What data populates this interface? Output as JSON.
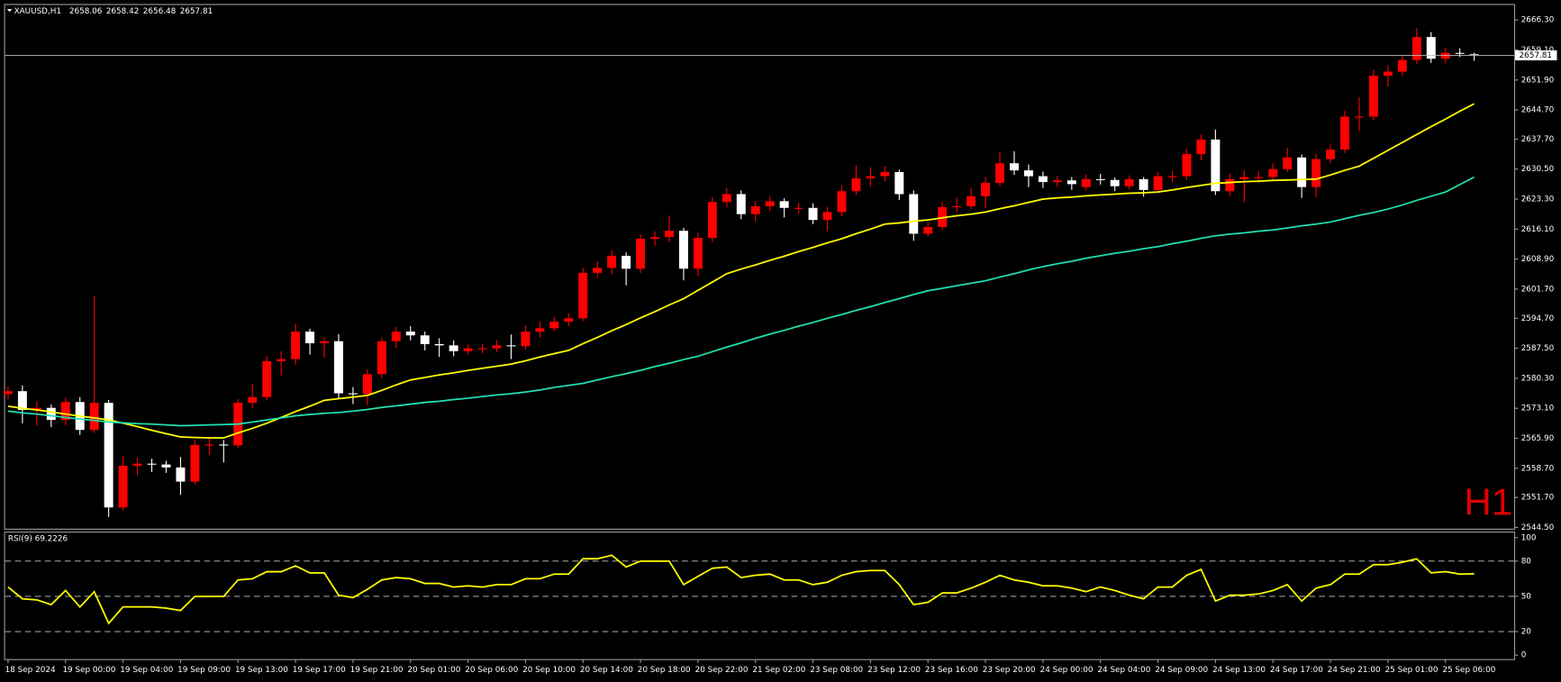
{
  "chart_data": [
    {
      "type": "candlestick",
      "title": "XAUUSD,H1",
      "status": [
        2658.06,
        2658.42,
        2656.48,
        2657.81
      ],
      "watermark": "H1",
      "up_color": "#ff0000",
      "down_color": "#ffffff",
      "current_price": 2657.81,
      "categories": [
        "18 Sep 2024",
        null,
        null,
        null,
        "19 Sep 00:00",
        null,
        null,
        null,
        "19 Sep 04:00",
        null,
        null,
        null,
        "19 Sep 09:00",
        null,
        null,
        null,
        "19 Sep 13:00",
        null,
        null,
        null,
        "19 Sep 17:00",
        null,
        null,
        null,
        "19 Sep 21:00",
        null,
        null,
        null,
        "20 Sep 01:00",
        null,
        null,
        null,
        "20 Sep 06:00",
        null,
        null,
        null,
        "20 Sep 10:00",
        null,
        null,
        null,
        "20 Sep 14:00",
        null,
        null,
        null,
        "20 Sep 18:00",
        null,
        null,
        null,
        "20 Sep 22:00",
        null,
        null,
        null,
        "21 Sep 02:00",
        null,
        null,
        null,
        "23 Sep 08:00",
        null,
        null,
        null,
        "23 Sep 12:00",
        null,
        null,
        null,
        "23 Sep 16:00",
        null,
        null,
        null,
        "23 Sep 20:00",
        null,
        null,
        null,
        "24 Sep 00:00",
        null,
        null,
        null,
        "24 Sep 04:00",
        null,
        null,
        null,
        "24 Sep 09:00",
        null,
        null,
        null,
        "24 Sep 13:00",
        null,
        null,
        null,
        "24 Sep 17:00",
        null,
        null,
        null,
        "24 Sep 21:00",
        null,
        null,
        null,
        "25 Sep 01:00",
        null,
        null,
        null,
        "25 Sep 06:00",
        null,
        null
      ],
      "open": [
        2576.5,
        2577.2,
        2572.7,
        2573.2,
        2570.3,
        2574.6,
        2567.9,
        2574.4,
        2549.3,
        2559.3,
        2559.8,
        2559.6,
        2558.9,
        2555.5,
        2564.3,
        2564.4,
        2564.2,
        2574.4,
        2575.8,
        2584.4,
        2584.9,
        2591.5,
        2588.7,
        2589.2,
        2576.7,
        2576.5,
        2581.3,
        2589.2,
        2591.5,
        2590.6,
        2588.5,
        2588.2,
        2586.8,
        2587.5,
        2587.5,
        2588.2,
        2588.0,
        2591.5,
        2592.3,
        2593.9,
        2594.7,
        2605.6,
        2606.8,
        2609.7,
        2606.6,
        2613.8,
        2614.2,
        2615.7,
        2606.6,
        2614.0,
        2622.6,
        2624.5,
        2619.7,
        2621.6,
        2622.8,
        2621.2,
        2621.2,
        2618.3,
        2620.2,
        2625.2,
        2628.3,
        2628.8,
        2629.8,
        2624.5,
        2615.0,
        2616.6,
        2621.4,
        2621.6,
        2624.0,
        2627.2,
        2631.9,
        2630.2,
        2628.8,
        2627.4,
        2627.8,
        2626.2,
        2628.1,
        2627.9,
        2626.4,
        2628.1,
        2625.5,
        2628.8,
        2628.8,
        2634.1,
        2637.6,
        2625.2,
        2628.1,
        2628.6,
        2628.6,
        2630.5,
        2633.3,
        2626.2,
        2632.9,
        2635.2,
        2643.1,
        2643.1,
        2652.9,
        2653.9,
        2656.7,
        2662.2,
        2657.0,
        2658.4,
        2658.06
      ],
      "high": [
        2578.4,
        2578.6,
        2574.8,
        2574.0,
        2575.6,
        2575.8,
        2600.1,
        2575.1,
        2561.5,
        2561.2,
        2561.0,
        2560.5,
        2561.4,
        2565.6,
        2566.2,
        2565.5,
        2575.3,
        2578.9,
        2585.6,
        2586.8,
        2593.4,
        2592.2,
        2590.1,
        2590.9,
        2578.2,
        2582.5,
        2590.1,
        2592.6,
        2592.8,
        2591.5,
        2589.9,
        2589.4,
        2588.4,
        2588.6,
        2589.4,
        2590.8,
        2593.0,
        2594.0,
        2595.0,
        2595.9,
        2606.8,
        2608.4,
        2611.1,
        2610.5,
        2614.9,
        2615.6,
        2619.4,
        2616.4,
        2615.2,
        2623.8,
        2626.0,
        2625.4,
        2622.8,
        2623.9,
        2623.5,
        2622.4,
        2622.3,
        2621.5,
        2626.6,
        2631.4,
        2631.0,
        2631.2,
        2630.4,
        2625.4,
        2617.8,
        2622.6,
        2623.8,
        2626.0,
        2628.6,
        2634.6,
        2634.8,
        2631.6,
        2629.9,
        2628.9,
        2628.6,
        2629.2,
        2629.4,
        2628.5,
        2629.0,
        2628.6,
        2629.8,
        2630.0,
        2635.4,
        2638.8,
        2640.0,
        2629.4,
        2630.3,
        2630.0,
        2631.9,
        2635.6,
        2634.0,
        2634.2,
        2636.4,
        2644.5,
        2647.8,
        2654.3,
        2655.4,
        2658.0,
        2664.3,
        2663.4,
        2659.6,
        2659.5,
        2658.42
      ],
      "low": [
        2575.2,
        2569.5,
        2568.9,
        2568.6,
        2569.0,
        2566.7,
        2567.2,
        2547.0,
        2548.6,
        2557.0,
        2557.8,
        2557.6,
        2552.3,
        2554.8,
        2561.9,
        2560.1,
        2563.5,
        2573.2,
        2575.1,
        2581.0,
        2583.6,
        2586.0,
        2585.2,
        2575.3,
        2574.1,
        2573.9,
        2580.4,
        2587.6,
        2589.4,
        2587.0,
        2585.4,
        2585.6,
        2586.0,
        2586.3,
        2586.6,
        2584.9,
        2587.1,
        2590.1,
        2591.6,
        2592.8,
        2594.0,
        2604.4,
        2605.4,
        2602.6,
        2605.6,
        2612.1,
        2613.0,
        2603.8,
        2604.9,
        2613.0,
        2621.4,
        2618.5,
        2617.8,
        2620.4,
        2618.9,
        2619.8,
        2617.3,
        2615.6,
        2619.2,
        2624.3,
        2626.4,
        2627.6,
        2623.1,
        2613.3,
        2614.3,
        2615.9,
        2620.2,
        2620.9,
        2621.1,
        2626.4,
        2629.1,
        2626.2,
        2626.0,
        2626.2,
        2625.5,
        2625.4,
        2626.8,
        2625.2,
        2625.7,
        2623.9,
        2624.8,
        2627.4,
        2627.9,
        2632.6,
        2624.3,
        2624.0,
        2622.6,
        2627.2,
        2627.9,
        2629.8,
        2623.6,
        2623.8,
        2631.9,
        2634.4,
        2639.6,
        2642.2,
        2650.3,
        2653.0,
        2655.8,
        2656.0,
        2655.9,
        2657.4,
        2656.48
      ],
      "close": [
        2577.2,
        2572.7,
        2573.2,
        2570.3,
        2574.6,
        2567.9,
        2574.4,
        2549.3,
        2559.3,
        2559.8,
        2559.6,
        2558.9,
        2555.5,
        2564.3,
        2564.4,
        2564.2,
        2574.4,
        2575.8,
        2584.4,
        2584.9,
        2591.5,
        2588.7,
        2589.2,
        2576.7,
        2576.5,
        2581.3,
        2589.2,
        2591.5,
        2590.6,
        2588.5,
        2588.2,
        2586.8,
        2587.5,
        2587.5,
        2588.2,
        2588.0,
        2591.5,
        2592.3,
        2593.9,
        2594.7,
        2605.6,
        2606.8,
        2609.7,
        2606.6,
        2613.8,
        2614.2,
        2615.7,
        2606.6,
        2614.0,
        2622.6,
        2624.5,
        2619.7,
        2621.6,
        2622.8,
        2621.2,
        2621.2,
        2618.3,
        2620.2,
        2625.2,
        2628.3,
        2628.8,
        2629.8,
        2624.5,
        2615.0,
        2616.6,
        2621.4,
        2621.6,
        2624.0,
        2627.2,
        2631.9,
        2630.2,
        2628.8,
        2627.4,
        2627.8,
        2626.9,
        2628.1,
        2627.9,
        2626.4,
        2628.1,
        2625.5,
        2628.8,
        2628.8,
        2634.1,
        2637.6,
        2625.2,
        2628.1,
        2628.6,
        2628.6,
        2630.5,
        2633.3,
        2626.2,
        2632.9,
        2635.2,
        2643.1,
        2643.1,
        2652.9,
        2653.9,
        2656.7,
        2662.2,
        2657.0,
        2658.4,
        2658.3,
        2657.81
      ],
      "series": [
        {
          "color": "#ffff00",
          "values": [
            2573.6,
            2573.1,
            2572.7,
            2572.2,
            2571.7,
            2571.2,
            2570.8,
            2570.3,
            2569.5,
            2568.7,
            2567.8,
            2567.0,
            2566.2,
            2566.1,
            2566.0,
            2566.0,
            2567.2,
            2568.3,
            2569.5,
            2570.9,
            2572.3,
            2573.6,
            2575.0,
            2575.4,
            2575.8,
            2576.2,
            2577.4,
            2578.7,
            2579.9,
            2580.5,
            2581.1,
            2581.6,
            2582.2,
            2582.7,
            2583.2,
            2583.7,
            2584.5,
            2585.4,
            2586.2,
            2587.0,
            2588.6,
            2590.1,
            2591.7,
            2593.2,
            2594.8,
            2596.3,
            2597.9,
            2599.4,
            2601.4,
            2603.4,
            2605.4,
            2606.5,
            2607.5,
            2608.6,
            2609.6,
            2610.7,
            2611.7,
            2612.8,
            2613.8,
            2615.0,
            2616.1,
            2617.3,
            2617.6,
            2618.0,
            2618.3,
            2618.8,
            2619.3,
            2619.7,
            2620.2,
            2621.0,
            2621.7,
            2622.5,
            2623.3,
            2623.6,
            2623.8,
            2624.1,
            2624.3,
            2624.5,
            2624.7,
            2624.8,
            2625.0,
            2625.5,
            2626.1,
            2626.6,
            2627.1,
            2627.3,
            2627.5,
            2627.6,
            2627.8,
            2627.9,
            2628.0,
            2628.1,
            2629.1,
            2630.2,
            2631.2,
            2633.1,
            2635.0,
            2636.9,
            2638.8,
            2640.7,
            2642.5,
            2644.4,
            2646.2
          ]
        },
        {
          "color": "#20e0b0",
          "values": [
            2572.4,
            2572.0,
            2571.7,
            2571.3,
            2570.9,
            2570.5,
            2570.2,
            2569.8,
            2569.6,
            2569.4,
            2569.3,
            2569.1,
            2568.9,
            2569.0,
            2569.1,
            2569.2,
            2569.3,
            2569.8,
            2570.3,
            2570.8,
            2571.3,
            2571.6,
            2571.9,
            2572.1,
            2572.4,
            2572.8,
            2573.3,
            2573.7,
            2574.1,
            2574.5,
            2574.8,
            2575.2,
            2575.5,
            2575.9,
            2576.3,
            2576.6,
            2577.0,
            2577.5,
            2578.1,
            2578.6,
            2579.1,
            2579.9,
            2580.7,
            2581.4,
            2582.2,
            2583.1,
            2583.9,
            2584.8,
            2585.6,
            2586.7,
            2587.8,
            2588.8,
            2589.9,
            2590.9,
            2591.8,
            2592.8,
            2593.7,
            2594.7,
            2595.6,
            2596.6,
            2597.5,
            2598.5,
            2599.4,
            2600.4,
            2601.3,
            2601.9,
            2602.5,
            2603.1,
            2603.7,
            2604.6,
            2605.4,
            2606.3,
            2607.1,
            2607.8,
            2608.4,
            2609.1,
            2609.7,
            2610.3,
            2610.8,
            2611.4,
            2611.9,
            2612.6,
            2613.2,
            2613.9,
            2614.5,
            2614.9,
            2615.2,
            2615.6,
            2615.9,
            2616.4,
            2616.9,
            2617.3,
            2617.8,
            2618.6,
            2619.4,
            2620.1,
            2620.9,
            2621.9,
            2623.0,
            2624.0,
            2625.0,
            2626.8,
            2628.6
          ]
        }
      ],
      "ylim": [
        2544.2,
        2669.9
      ],
      "yticks": [
        {
          "value": 2666.3,
          "label": "2666.30"
        },
        {
          "value": 2659.1,
          "label": "2659.10"
        },
        {
          "value": 2651.9,
          "label": "2651.90"
        },
        {
          "value": 2644.7,
          "label": "2644.70"
        },
        {
          "value": 2637.7,
          "label": "2637.70"
        },
        {
          "value": 2630.5,
          "label": "2630.50"
        },
        {
          "value": 2623.3,
          "label": "2623.30"
        },
        {
          "value": 2616.1,
          "label": "2616.10"
        },
        {
          "value": 2608.9,
          "label": "2608.90"
        },
        {
          "value": 2601.7,
          "label": "2601.70"
        },
        {
          "value": 2594.7,
          "label": "2594.70"
        },
        {
          "value": 2587.5,
          "label": "2587.50"
        },
        {
          "value": 2580.3,
          "label": "2580.30"
        },
        {
          "value": 2573.1,
          "label": "2573.10"
        },
        {
          "value": 2565.9,
          "label": "2565.90"
        },
        {
          "value": 2558.7,
          "label": "2558.70"
        },
        {
          "value": 2551.7,
          "label": "2551.70"
        },
        {
          "value": 2544.5,
          "label": "2544.50"
        }
      ]
    },
    {
      "type": "line",
      "title": "RSI(9) 69.2226",
      "color": "#ffff00",
      "values": [
        58,
        48,
        47,
        43,
        55,
        41,
        54,
        27,
        41,
        41,
        41,
        40,
        38,
        50,
        50,
        50,
        64,
        65,
        71,
        71,
        76,
        70,
        70,
        51,
        49,
        56,
        64,
        66,
        65,
        61,
        61,
        58,
        59,
        58,
        60,
        60,
        65,
        65,
        69,
        69,
        82,
        82,
        85,
        75,
        80,
        80,
        80,
        60,
        67,
        74,
        75,
        66,
        68,
        69,
        64,
        64,
        60,
        62,
        68,
        71,
        72,
        72,
        60,
        43,
        45,
        53,
        53,
        57,
        62,
        68,
        64,
        62,
        59,
        59,
        57,
        54,
        58,
        55,
        51,
        48,
        58,
        58,
        68,
        73,
        46,
        51,
        51,
        52,
        55,
        60,
        46,
        57,
        60,
        69,
        69,
        77,
        77,
        79,
        82,
        70,
        71,
        69,
        69.2226
      ],
      "ylim": [
        0,
        100
      ],
      "yticks": [
        100,
        80,
        50,
        20,
        0
      ],
      "levels": [
        80,
        50,
        20
      ]
    }
  ]
}
